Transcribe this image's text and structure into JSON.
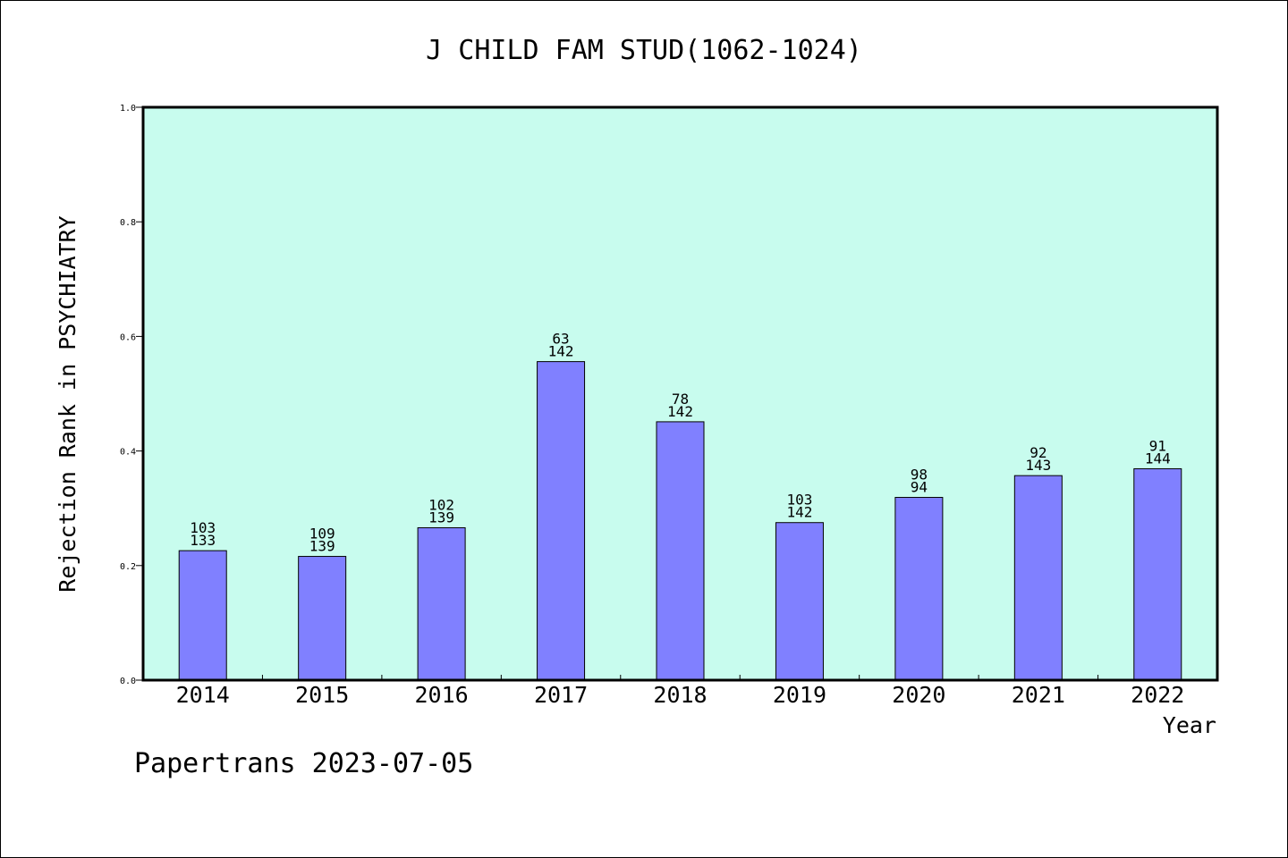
{
  "chart_data": {
    "type": "bar",
    "title": "J CHILD FAM STUD(1062-1024)",
    "xlabel": "Year",
    "ylabel": "Rejection Rank in PSYCHIATRY",
    "ylim": [
      0,
      1.0
    ],
    "yticks": [
      "0.0",
      "0.2",
      "0.4",
      "0.6",
      "0.8",
      "1.0"
    ],
    "categories": [
      "2014",
      "2015",
      "2016",
      "2017",
      "2018",
      "2019",
      "2020",
      "2021",
      "2022"
    ],
    "values": [
      0.226,
      0.216,
      0.266,
      0.556,
      0.451,
      0.275,
      0.319,
      0.357,
      0.369
    ],
    "labels_top": [
      "103",
      "109",
      "102",
      "63",
      "78",
      "103",
      "98",
      "92",
      "91"
    ],
    "labels_bottom": [
      "133",
      "139",
      "139",
      "142",
      "142",
      "142",
      "94",
      "143",
      "144"
    ],
    "grid": false,
    "colors": {
      "plot_background": "#c8fcee",
      "bar_fill": "#8080ff",
      "bar_stroke": "#000000"
    }
  },
  "footer": "Papertrans 2023-07-05"
}
